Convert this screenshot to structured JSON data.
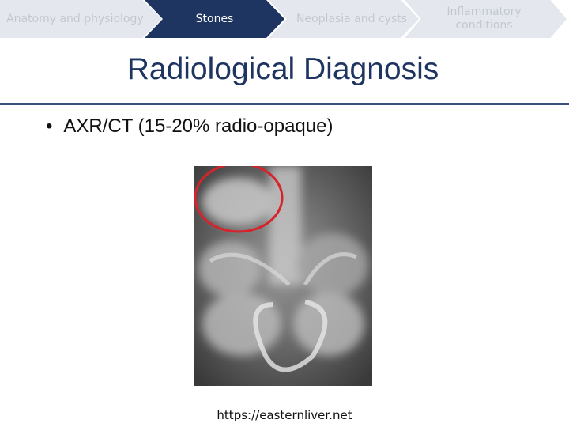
{
  "nav": {
    "steps": [
      "Anatomy and physiology",
      "Stones",
      "Neoplasia and cysts",
      "Inflammatory conditions"
    ]
  },
  "title": "Radiological Diagnosis",
  "bullets": [
    "AXR/CT (15-20% radio-opaque)"
  ],
  "image_source": "https://easternliver.net"
}
